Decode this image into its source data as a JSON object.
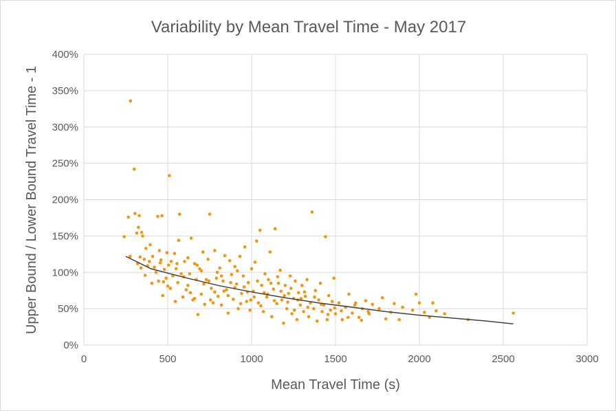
{
  "chart_data": {
    "type": "scatter",
    "title": "Variability by Mean Travel Time - May 2017",
    "xlabel": "Mean Travel Time (s)",
    "ylabel": "Upper Bound / Lower Bound Travel Time - 1",
    "xlim": [
      0,
      3000
    ],
    "ylim": [
      0,
      4
    ],
    "x_ticks": [
      0,
      500,
      1000,
      1500,
      2000,
      2500,
      3000
    ],
    "x_tick_labels": [
      "0",
      "500",
      "1000",
      "1500",
      "2000",
      "2500",
      "3000"
    ],
    "y_ticks": [
      0,
      0.5,
      1,
      1.5,
      2,
      2.5,
      3,
      3.5,
      4
    ],
    "y_tick_labels": [
      "0%",
      "50%",
      "100%",
      "150%",
      "200%",
      "250%",
      "300%",
      "350%",
      "400%"
    ],
    "grid": true,
    "legend": "none",
    "colors": {
      "points": "#f0960f",
      "trendline": "#404040",
      "grid": "#d9d9d9",
      "text": "#595959"
    },
    "trendline": {
      "type": "power",
      "x": [
        250,
        400,
        600,
        800,
        1000,
        1200,
        1400,
        1600,
        1800,
        2000,
        2200,
        2400,
        2560
      ],
      "y": [
        1.22,
        1.05,
        0.93,
        0.82,
        0.73,
        0.65,
        0.58,
        0.52,
        0.46,
        0.41,
        0.37,
        0.33,
        0.29
      ]
    },
    "series": [
      {
        "points": [
          [
            240,
            1.49
          ],
          [
            265,
            1.76
          ],
          [
            275,
            1.22
          ],
          [
            278,
            3.36
          ],
          [
            300,
            2.42
          ],
          [
            305,
            1.81
          ],
          [
            315,
            1.54
          ],
          [
            320,
            1.12
          ],
          [
            325,
            1.62
          ],
          [
            330,
            1.78
          ],
          [
            335,
            1.21
          ],
          [
            340,
            1.06
          ],
          [
            345,
            1.55
          ],
          [
            350,
            1.5
          ],
          [
            360,
            1.18
          ],
          [
            365,
            0.96
          ],
          [
            370,
            1.33
          ],
          [
            380,
            1.09
          ],
          [
            390,
            1.15
          ],
          [
            395,
            1.38
          ],
          [
            405,
            0.85
          ],
          [
            410,
            1.22
          ],
          [
            420,
            1.07
          ],
          [
            430,
            1.0
          ],
          [
            440,
            1.77
          ],
          [
            445,
            0.88
          ],
          [
            450,
            1.3
          ],
          [
            455,
            1.13
          ],
          [
            460,
            1.17
          ],
          [
            465,
            1.78
          ],
          [
            470,
            0.68
          ],
          [
            475,
            0.87
          ],
          [
            480,
            1.04
          ],
          [
            490,
            0.92
          ],
          [
            495,
            1.27
          ],
          [
            500,
            0.81
          ],
          [
            505,
            1.1
          ],
          [
            510,
            2.33
          ],
          [
            515,
            0.78
          ],
          [
            520,
            1.15
          ],
          [
            530,
            0.95
          ],
          [
            540,
            1.26
          ],
          [
            545,
            0.6
          ],
          [
            550,
            1.05
          ],
          [
            560,
            0.86
          ],
          [
            565,
            1.44
          ],
          [
            570,
            1.8
          ],
          [
            580,
            0.98
          ],
          [
            590,
            0.66
          ],
          [
            600,
            1.15
          ],
          [
            610,
            0.76
          ],
          [
            620,
            1.2
          ],
          [
            630,
            0.98
          ],
          [
            640,
            1.47
          ],
          [
            650,
            0.62
          ],
          [
            660,
            1.12
          ],
          [
            670,
            0.9
          ],
          [
            680,
            0.42
          ],
          [
            690,
            1.05
          ],
          [
            700,
            0.7
          ],
          [
            710,
            1.28
          ],
          [
            720,
            0.56
          ],
          [
            730,
            0.9
          ],
          [
            740,
            1.18
          ],
          [
            750,
            1.8
          ],
          [
            760,
            0.78
          ],
          [
            770,
            0.58
          ],
          [
            780,
            1.3
          ],
          [
            790,
            0.92
          ],
          [
            800,
            0.67
          ],
          [
            810,
            1.06
          ],
          [
            820,
            0.55
          ],
          [
            830,
            0.88
          ],
          [
            840,
            1.23
          ],
          [
            850,
            0.76
          ],
          [
            860,
            0.44
          ],
          [
            870,
            1.16
          ],
          [
            880,
            0.97
          ],
          [
            890,
            0.63
          ],
          [
            900,
            1.08
          ],
          [
            910,
            0.84
          ],
          [
            920,
            0.5
          ],
          [
            930,
            1.22
          ],
          [
            940,
            0.71
          ],
          [
            950,
            0.95
          ],
          [
            960,
            1.35
          ],
          [
            970,
            0.6
          ],
          [
            980,
            0.86
          ],
          [
            990,
            0.48
          ],
          [
            1000,
            1.05
          ],
          [
            1010,
            0.74
          ],
          [
            1020,
            1.14
          ],
          [
            1030,
            1.43
          ],
          [
            1040,
            0.58
          ],
          [
            1050,
            1.58
          ],
          [
            1060,
            0.82
          ],
          [
            1070,
            0.46
          ],
          [
            1080,
            0.98
          ],
          [
            1090,
            0.66
          ],
          [
            1100,
            0.9
          ],
          [
            1110,
            1.28
          ],
          [
            1120,
            0.39
          ],
          [
            1130,
            0.77
          ],
          [
            1140,
            1.6
          ],
          [
            1150,
            0.57
          ],
          [
            1160,
            0.85
          ],
          [
            1170,
            1.03
          ],
          [
            1180,
            0.62
          ],
          [
            1190,
            0.3
          ],
          [
            1200,
            0.82
          ],
          [
            1210,
            0.5
          ],
          [
            1220,
            0.71
          ],
          [
            1230,
            0.95
          ],
          [
            1240,
            0.43
          ],
          [
            1250,
            0.64
          ],
          [
            1260,
            0.88
          ],
          [
            1270,
            0.35
          ],
          [
            1280,
            0.72
          ],
          [
            1290,
            0.55
          ],
          [
            1300,
            0.82
          ],
          [
            1310,
            0.46
          ],
          [
            1320,
            0.67
          ],
          [
            1330,
            0.9
          ],
          [
            1340,
            0.39
          ],
          [
            1350,
            0.58
          ],
          [
            1360,
            1.83
          ],
          [
            1370,
            0.5
          ],
          [
            1380,
            0.75
          ],
          [
            1390,
            0.33
          ],
          [
            1400,
            0.62
          ],
          [
            1410,
            0.85
          ],
          [
            1420,
            0.46
          ],
          [
            1430,
            0.55
          ],
          [
            1440,
            1.49
          ],
          [
            1450,
            0.35
          ],
          [
            1460,
            0.68
          ],
          [
            1470,
            0.48
          ],
          [
            1480,
            0.6
          ],
          [
            1490,
            0.92
          ],
          [
            1500,
            0.43
          ],
          [
            1520,
            0.58
          ],
          [
            1540,
            0.35
          ],
          [
            1560,
            0.52
          ],
          [
            1580,
            0.7
          ],
          [
            1600,
            0.44
          ],
          [
            1620,
            0.58
          ],
          [
            1640,
            0.38
          ],
          [
            1660,
            0.5
          ],
          [
            1680,
            0.61
          ],
          [
            1700,
            0.43
          ],
          [
            1720,
            0.56
          ],
          [
            1760,
            0.5
          ],
          [
            1780,
            0.65
          ],
          [
            1800,
            0.36
          ],
          [
            1830,
            0.45
          ],
          [
            1850,
            0.57
          ],
          [
            1880,
            0.35
          ],
          [
            1900,
            0.52
          ],
          [
            1960,
            0.48
          ],
          [
            1980,
            0.7
          ],
          [
            2000,
            0.58
          ],
          [
            2030,
            0.45
          ],
          [
            2060,
            0.38
          ],
          [
            2080,
            0.58
          ],
          [
            2100,
            0.47
          ],
          [
            2150,
            0.43
          ],
          [
            2290,
            0.35
          ],
          [
            2560,
            0.44
          ],
          [
            620,
            0.82
          ],
          [
            660,
            0.64
          ],
          [
            700,
            1.02
          ],
          [
            745,
            0.88
          ],
          [
            780,
            0.73
          ],
          [
            820,
            0.95
          ],
          [
            860,
            0.68
          ],
          [
            900,
            0.79
          ],
          [
            935,
            0.57
          ],
          [
            975,
            0.73
          ],
          [
            1015,
            0.66
          ],
          [
            1055,
            0.54
          ],
          [
            1095,
            0.7
          ],
          [
            1135,
            0.61
          ],
          [
            1175,
            0.74
          ],
          [
            1215,
            0.59
          ],
          [
            1255,
            0.48
          ],
          [
            1295,
            0.64
          ],
          [
            1335,
            0.52
          ],
          [
            1375,
            0.66
          ],
          [
            1415,
            0.56
          ],
          [
            1455,
            0.42
          ],
          [
            1495,
            0.51
          ],
          [
            1535,
            0.47
          ],
          [
            1575,
            0.38
          ],
          [
            1615,
            0.55
          ],
          [
            1655,
            0.34
          ],
          [
            1695,
            0.46
          ],
          [
            555,
            1.12
          ],
          [
            595,
            0.94
          ],
          [
            635,
            0.72
          ],
          [
            675,
            1.1
          ],
          [
            715,
            0.84
          ],
          [
            755,
            0.62
          ],
          [
            795,
            1.0
          ],
          [
            835,
            0.74
          ],
          [
            875,
            0.86
          ],
          [
            915,
            1.02
          ],
          [
            955,
            0.8
          ],
          [
            995,
            0.62
          ],
          [
            1035,
            0.88
          ],
          [
            1075,
            0.72
          ],
          [
            1115,
            0.85
          ],
          [
            1155,
            0.94
          ],
          [
            1195,
            0.68
          ],
          [
            1235,
            0.78
          ],
          [
            1275,
            0.62
          ],
          [
            1315,
            0.73
          ]
        ]
      }
    ]
  }
}
